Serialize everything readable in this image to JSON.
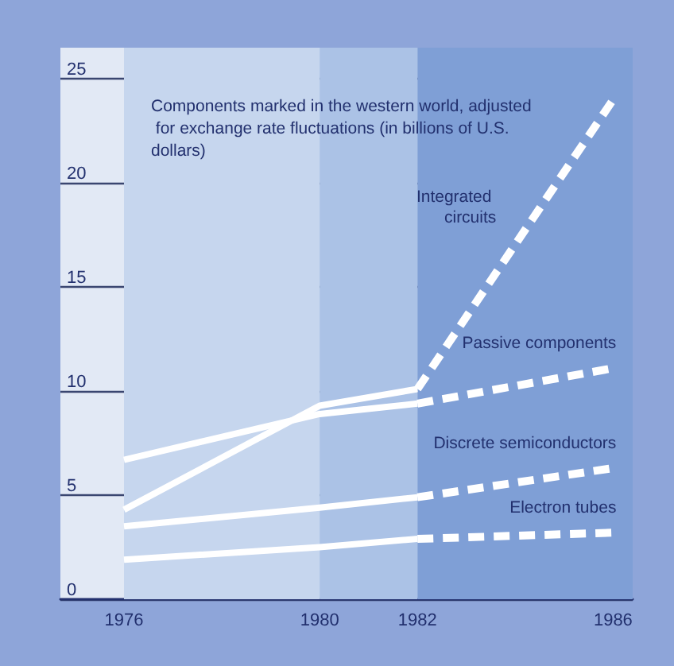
{
  "chart_data": {
    "type": "line",
    "title": "Components marked in the western world, adjusted for exchange rate fluctuations (in billions of U.S. dollars)",
    "x": [
      1976,
      1980,
      1982,
      1986
    ],
    "xlim": [
      1974.7,
      1986.4
    ],
    "xticks": [
      1976,
      1980,
      1982,
      1986
    ],
    "ylim": [
      0,
      26.5
    ],
    "yticks": [
      0,
      5,
      10,
      15,
      20,
      25
    ],
    "grid": "y",
    "legend": false,
    "marker": "none",
    "bands": [
      {
        "axis": "x",
        "from": 1976,
        "to": 1980,
        "color": "#c6d6ee"
      },
      {
        "axis": "x",
        "from": 1980,
        "to": 1982,
        "color": "#abc2e6"
      },
      {
        "axis": "x",
        "from": 1982,
        "to": 1986.4,
        "color": "#7f9fd6"
      }
    ],
    "series": [
      {
        "name": "Integrated circuits",
        "color": "#ffffff",
        "line_style": "solid",
        "values": [
          4.3,
          9.3,
          10.1,
          null
        ]
      },
      {
        "color": "#ffffff",
        "line_style": "dashed",
        "values": [
          null,
          null,
          10.1,
          24
        ]
      },
      {
        "name": "Passive components",
        "color": "#ffffff",
        "line_style": "solid",
        "values": [
          6.7,
          8.9,
          9.4,
          null
        ]
      },
      {
        "color": "#ffffff",
        "line_style": "dashed",
        "values": [
          null,
          null,
          9.4,
          11.1
        ]
      },
      {
        "name": "Discrete semiconductors",
        "color": "#ffffff",
        "line_style": "solid",
        "values": [
          3.5,
          4.4,
          4.9,
          null
        ]
      },
      {
        "color": "#ffffff",
        "line_style": "dashed",
        "values": [
          null,
          null,
          4.9,
          6.3
        ]
      },
      {
        "name": "Electron tubes",
        "color": "#ffffff",
        "line_style": "solid",
        "values": [
          1.9,
          2.5,
          2.9,
          null
        ]
      },
      {
        "color": "#ffffff",
        "line_style": "dashed",
        "values": [
          null,
          null,
          2.9,
          3.2
        ]
      }
    ]
  }
}
